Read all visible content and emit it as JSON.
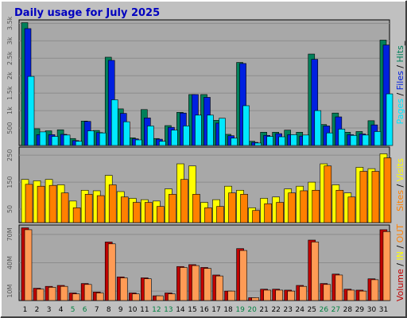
{
  "title": "Daily usage for July 2025",
  "colors": {
    "background": "#c0c0c0",
    "plot_bg": "#a8a8a8",
    "title": "#0000c0",
    "hits": "#00805a",
    "files": "#0020e0",
    "pages": "#00e8ff",
    "sites": "#ff8000",
    "visits": "#ffff00",
    "volume": "#c00000",
    "in_out": "#ff9b55",
    "weekend_day": "#008040",
    "weekday": "#000000"
  },
  "chart_data": [
    {
      "type": "bar",
      "panel": "hits-files-pages",
      "ylabel_parts": [
        "Pages",
        " / ",
        "Files",
        " / ",
        "Hits",
        "_"
      ],
      "y_ticks": [
        "3.5k",
        "3k",
        "2.5k",
        "2k",
        "1.5k",
        "1k",
        "500"
      ],
      "y_tick_values": [
        3500,
        3000,
        2500,
        2000,
        1500,
        1000,
        500
      ],
      "ylim": [
        0,
        3600
      ],
      "grid": true,
      "categories": [
        "1",
        "2",
        "3",
        "4",
        "5",
        "6",
        "7",
        "8",
        "9",
        "10",
        "11",
        "12",
        "13",
        "14",
        "15",
        "16",
        "17",
        "18",
        "19",
        "20",
        "21",
        "22",
        "23",
        "24",
        "25",
        "26",
        "27",
        "28",
        "29",
        "30",
        "31"
      ],
      "series": [
        {
          "name": "Hits",
          "values": [
            3520,
            480,
            420,
            450,
            200,
            700,
            430,
            2530,
            1050,
            220,
            1030,
            200,
            570,
            950,
            1460,
            1460,
            720,
            320,
            2380,
            120,
            380,
            380,
            440,
            380,
            2620,
            600,
            930,
            380,
            400,
            710,
            3020
          ]
        },
        {
          "name": "Files",
          "values": [
            3350,
            310,
            310,
            320,
            140,
            690,
            370,
            2440,
            920,
            190,
            790,
            180,
            520,
            930,
            1460,
            1380,
            640,
            280,
            2350,
            90,
            290,
            340,
            310,
            270,
            2470,
            560,
            820,
            310,
            330,
            590,
            2880
          ]
        },
        {
          "name": "Pages",
          "values": [
            1980,
            390,
            260,
            300,
            120,
            420,
            360,
            1310,
            680,
            160,
            560,
            120,
            440,
            560,
            870,
            870,
            780,
            210,
            1140,
            70,
            260,
            250,
            310,
            300,
            1000,
            360,
            470,
            290,
            300,
            400,
            1480
          ]
        }
      ]
    },
    {
      "type": "bar",
      "panel": "visits-sites",
      "ylabel_parts": [
        "Sites",
        " / ",
        "Visits"
      ],
      "y_ticks": [
        "250",
        "150",
        "50"
      ],
      "y_tick_values": [
        250,
        150,
        50
      ],
      "ylim": [
        0,
        280
      ],
      "grid": true,
      "categories": [
        "1",
        "2",
        "3",
        "4",
        "5",
        "6",
        "7",
        "8",
        "9",
        "10",
        "11",
        "12",
        "13",
        "14",
        "15",
        "16",
        "17",
        "18",
        "19",
        "20",
        "21",
        "22",
        "23",
        "24",
        "25",
        "26",
        "27",
        "28",
        "29",
        "30",
        "31"
      ],
      "series": [
        {
          "name": "Visits",
          "values": [
            160,
            155,
            160,
            140,
            80,
            120,
            118,
            175,
            115,
            90,
            85,
            80,
            125,
            218,
            210,
            75,
            85,
            135,
            120,
            55,
            90,
            95,
            125,
            135,
            150,
            218,
            140,
            110,
            205,
            200,
            255
          ]
        },
        {
          "name": "Sites",
          "values": [
            142,
            135,
            138,
            110,
            55,
            105,
            100,
            140,
            95,
            75,
            75,
            60,
            105,
            160,
            105,
            55,
            60,
            110,
            105,
            45,
            70,
            75,
            110,
            118,
            120,
            210,
            120,
            95,
            190,
            190,
            240
          ]
        }
      ]
    },
    {
      "type": "bar",
      "panel": "volume",
      "ylabel_parts": [
        "Volume",
        " / ",
        "IN",
        " / ",
        "OUT"
      ],
      "y_ticks": [
        "70M",
        "40M",
        "10M"
      ],
      "y_tick_values": [
        70,
        40,
        10
      ],
      "ylim": [
        0,
        80
      ],
      "grid": true,
      "categories": [
        "1",
        "2",
        "3",
        "4",
        "5",
        "6",
        "7",
        "8",
        "9",
        "10",
        "11",
        "12",
        "13",
        "14",
        "15",
        "16",
        "17",
        "18",
        "19",
        "20",
        "21",
        "22",
        "23",
        "24",
        "25",
        "26",
        "27",
        "28",
        "29",
        "30",
        "31"
      ],
      "series": [
        {
          "name": "Volume",
          "values": [
            77,
            13,
            15,
            16,
            8,
            18,
            9,
            62,
            25,
            8,
            24,
            5,
            8,
            36,
            38,
            35,
            27,
            10,
            55,
            3,
            12,
            12,
            11,
            16,
            64,
            18,
            28,
            12,
            11,
            23,
            75
          ]
        },
        {
          "name": "IN/OUT",
          "values": [
            75,
            12,
            14,
            15,
            7,
            17,
            8,
            60,
            24,
            7,
            23,
            5,
            7,
            35,
            37,
            34,
            26,
            10,
            53,
            3,
            11,
            11,
            10,
            15,
            62,
            17,
            27,
            11,
            10,
            22,
            73
          ]
        }
      ]
    }
  ],
  "x_labels": [
    "1",
    "2",
    "3",
    "4",
    "5",
    "6",
    "7",
    "8",
    "9",
    "10",
    "11",
    "12",
    "13",
    "14",
    "15",
    "16",
    "17",
    "18",
    "19",
    "20",
    "21",
    "22",
    "23",
    "24",
    "25",
    "26",
    "27",
    "28",
    "29",
    "30",
    "31"
  ],
  "weekend_days": [
    "5",
    "6",
    "12",
    "13",
    "19",
    "20",
    "26",
    "27"
  ]
}
